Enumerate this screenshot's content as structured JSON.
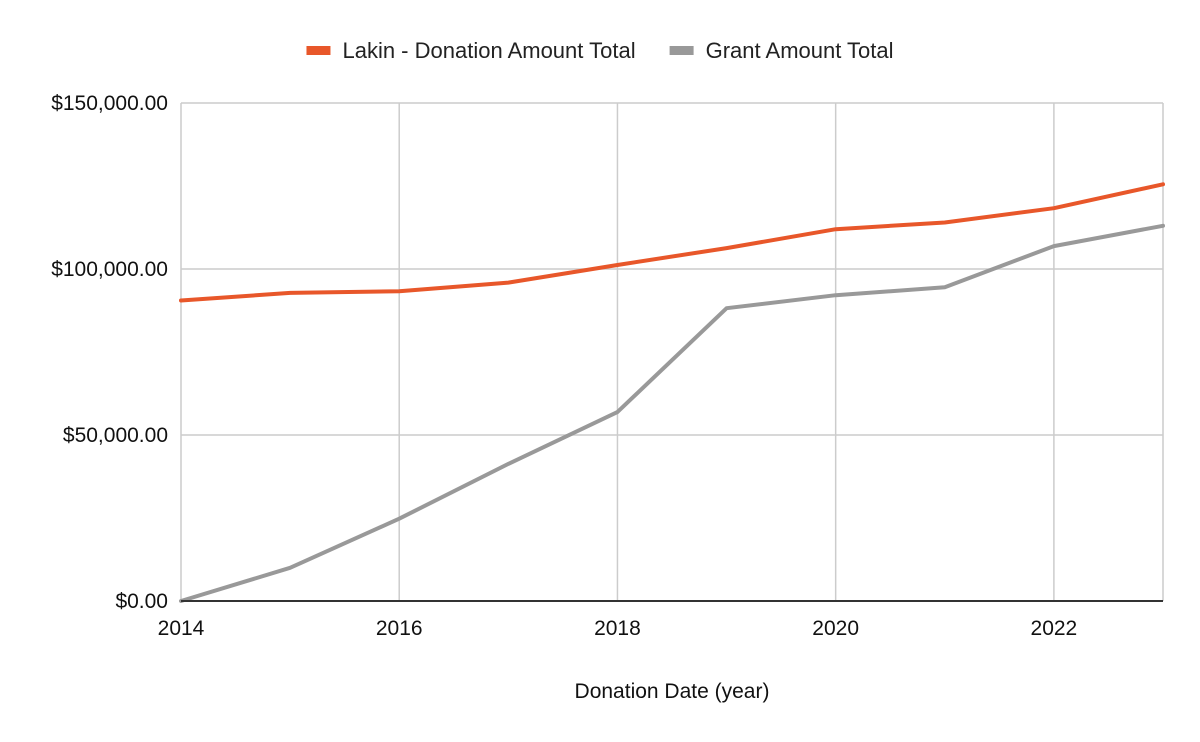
{
  "chart_data": {
    "type": "line",
    "title": "",
    "xlabel": "Donation Date (year)",
    "ylabel": "",
    "x": [
      2014,
      2015,
      2016,
      2017,
      2018,
      2019,
      2020,
      2021,
      2022,
      2023
    ],
    "xlim": [
      2014,
      2023
    ],
    "ylim": [
      0,
      150000
    ],
    "x_ticks": [
      2014,
      2016,
      2018,
      2020,
      2022
    ],
    "x_tick_labels": [
      "2014",
      "2016",
      "2018",
      "2020",
      "2022"
    ],
    "y_ticks": [
      0,
      50000,
      100000,
      150000
    ],
    "y_tick_labels": [
      "$0.00",
      "$50,000.00",
      "$100,000.00",
      "$150,000.00"
    ],
    "grid": true,
    "legend_position": "top-center",
    "series": [
      {
        "name": "Lakin - Donation Amount Total",
        "color": "#E8572A",
        "values": [
          90500,
          92800,
          93300,
          95900,
          101200,
          106300,
          112000,
          114000,
          118300,
          125500
        ]
      },
      {
        "name": "Grant Amount Total",
        "color": "#999999",
        "values": [
          0,
          10000,
          24800,
          41300,
          56900,
          88200,
          92100,
          94500,
          106900,
          113000
        ]
      }
    ]
  }
}
